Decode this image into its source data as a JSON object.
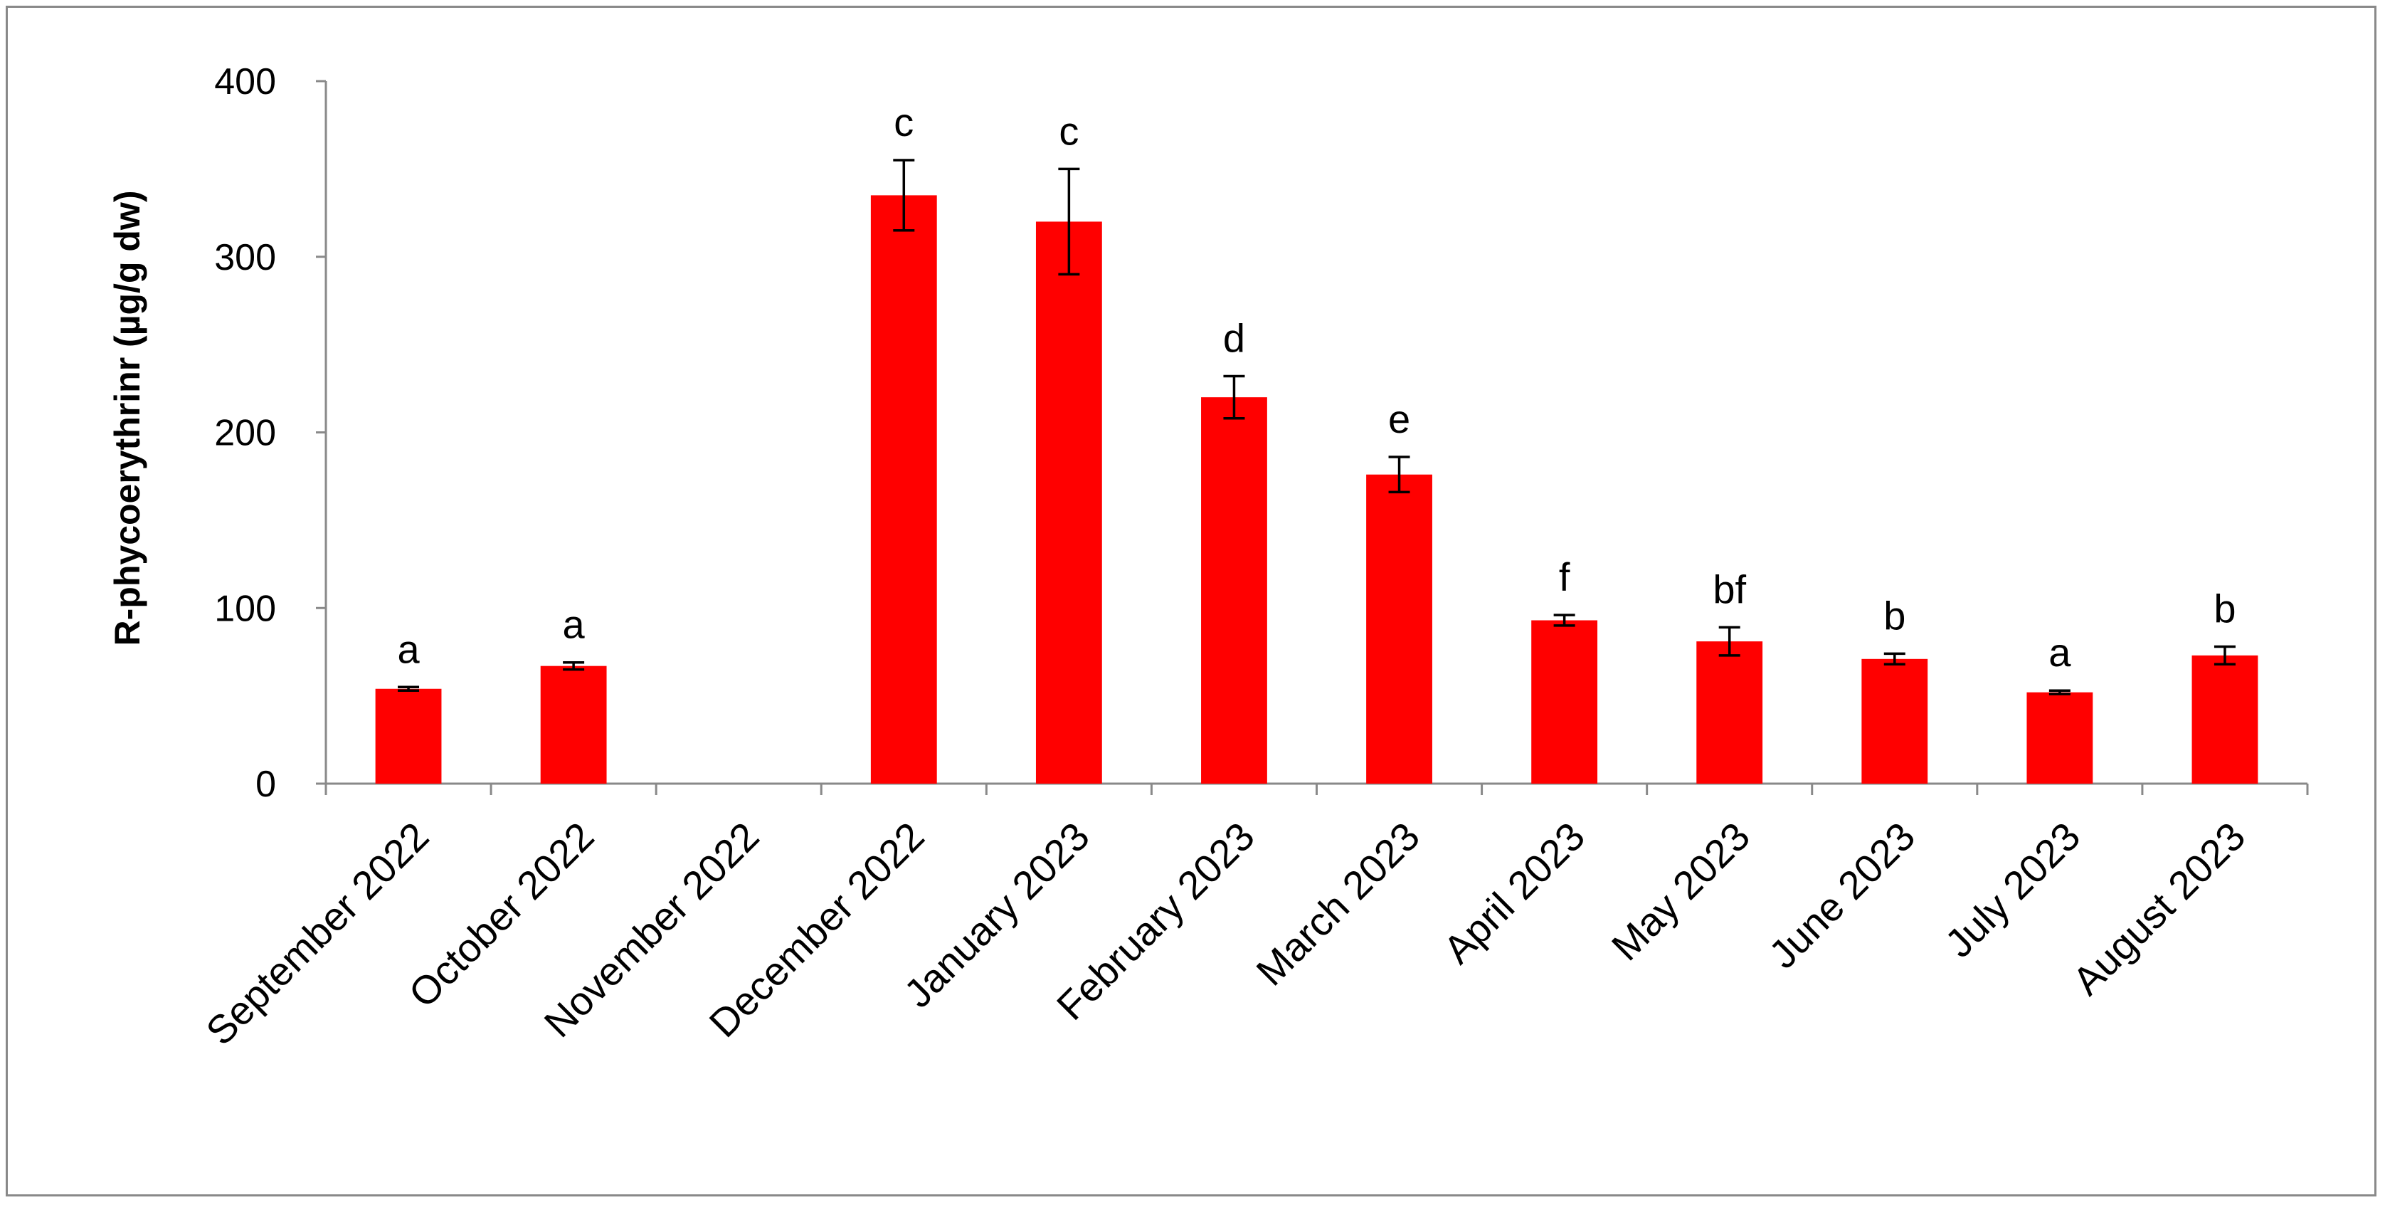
{
  "chart_data": {
    "type": "bar",
    "ylabel": "R-phycoerythrinr (µg/g dw)",
    "xlabel": "",
    "ylim": [
      0,
      400
    ],
    "yticks": [
      0,
      100,
      200,
      300,
      400
    ],
    "grid": false,
    "legend": "none",
    "bar_color": "#ff0000",
    "categories": [
      "September 2022",
      "October 2022",
      "November 2022",
      "December 2022",
      "January 2023",
      "February 2023",
      "March 2023",
      "April 2023",
      "May 2023",
      "June 2023",
      "July 2023",
      "August 2023"
    ],
    "values": [
      54,
      67,
      null,
      335,
      320,
      220,
      176,
      93,
      81,
      71,
      52,
      73
    ],
    "errors": [
      1,
      2,
      null,
      20,
      30,
      12,
      10,
      3,
      8,
      3,
      1,
      5
    ],
    "significance_labels": [
      "a",
      "a",
      "",
      "c",
      "c",
      "d",
      "e",
      "f",
      "bf",
      "b",
      "a",
      "b"
    ]
  }
}
